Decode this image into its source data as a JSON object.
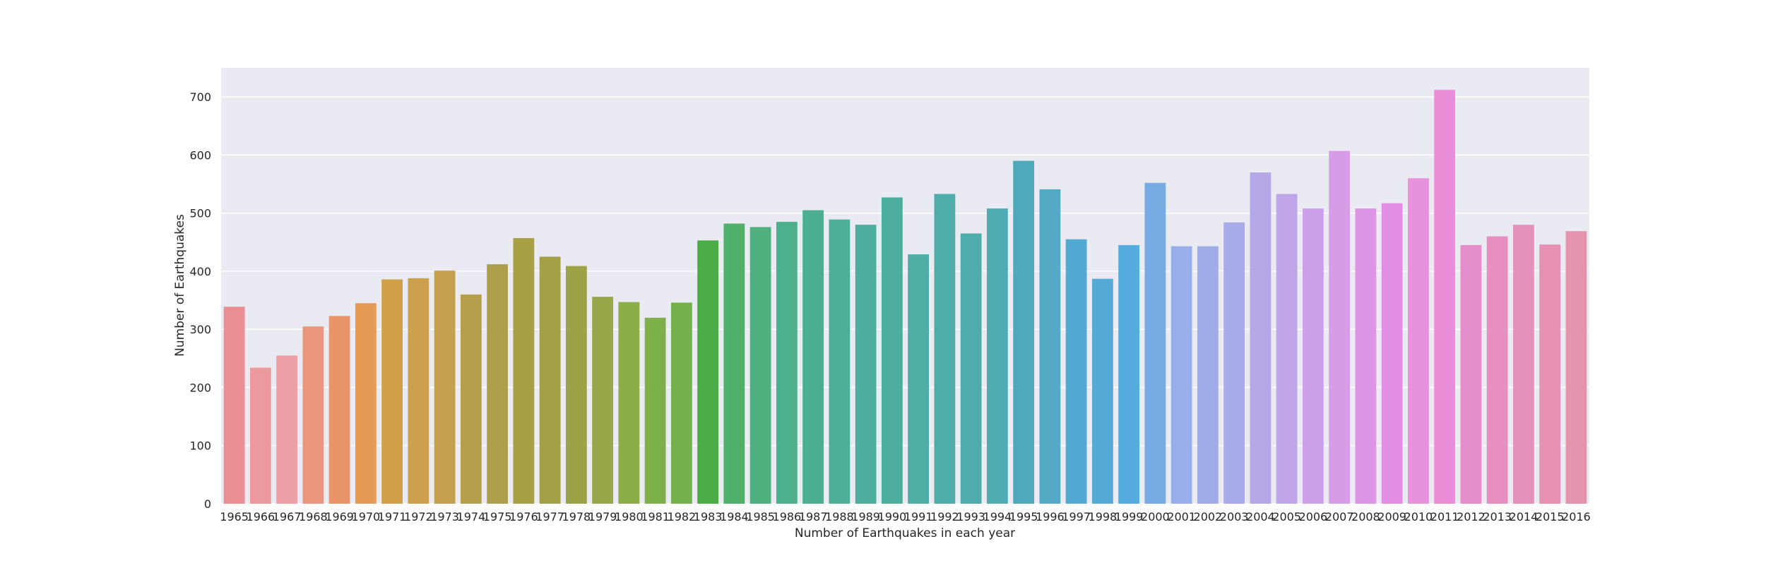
{
  "chart_data": {
    "type": "bar",
    "title": "",
    "xlabel": "Number of Earthquakes in each year",
    "ylabel": "Number of Earthquakes",
    "ylim": [
      0,
      750
    ],
    "yticks": [
      0,
      100,
      200,
      300,
      400,
      500,
      600,
      700
    ],
    "grid": true,
    "legend": "none",
    "background_color": "#eaeaf2",
    "categories": [
      "1965",
      "1966",
      "1967",
      "1968",
      "1969",
      "1970",
      "1971",
      "1972",
      "1973",
      "1974",
      "1975",
      "1976",
      "1977",
      "1978",
      "1979",
      "1980",
      "1981",
      "1982",
      "1983",
      "1984",
      "1985",
      "1986",
      "1987",
      "1988",
      "1989",
      "1990",
      "1991",
      "1992",
      "1993",
      "1994",
      "1995",
      "1996",
      "1997",
      "1998",
      "1999",
      "2000",
      "2001",
      "2002",
      "2003",
      "2004",
      "2005",
      "2006",
      "2007",
      "2008",
      "2009",
      "2010",
      "2011",
      "2012",
      "2013",
      "2014",
      "2015",
      "2016"
    ],
    "values": [
      339,
      234,
      255,
      305,
      323,
      345,
      386,
      388,
      401,
      360,
      412,
      457,
      425,
      409,
      356,
      347,
      320,
      346,
      453,
      482,
      476,
      485,
      505,
      489,
      480,
      527,
      429,
      533,
      465,
      508,
      590,
      541,
      455,
      387,
      445,
      552,
      443,
      443,
      484,
      570,
      533,
      508,
      607,
      508,
      517,
      560,
      712,
      445,
      460,
      480,
      446,
      469
    ],
    "colors": [
      "#ea8e93",
      "#eb999d",
      "#eda1a6",
      "#eb967b",
      "#e9946b",
      "#e69b55",
      "#d2a049",
      "#cca04d",
      "#c5a04c",
      "#b59f4c",
      "#ad9f4c",
      "#a9a046",
      "#a3a048",
      "#9ca347",
      "#96a84a",
      "#8bad4a",
      "#7eb049",
      "#73b14b",
      "#4bad47",
      "#4fb06c",
      "#4db07e",
      "#4db08d",
      "#4aae91",
      "#4caf96",
      "#4cae9c",
      "#4cae9f",
      "#4eada4",
      "#4eada8",
      "#4eacad",
      "#4eacb3",
      "#4ea9ba",
      "#52aac4",
      "#52a9d1",
      "#56aad6",
      "#55acdf",
      "#76abe3",
      "#99aee8",
      "#a0ace8",
      "#a8abe9",
      "#b6a7e9",
      "#c0a5e9",
      "#cca0e9",
      "#d79ce7",
      "#dd95e6",
      "#e38ee5",
      "#e891dc",
      "#e88dd6",
      "#e58cca",
      "#e68fc0",
      "#e691bb",
      "#e690b4",
      "#e592ad"
    ]
  }
}
